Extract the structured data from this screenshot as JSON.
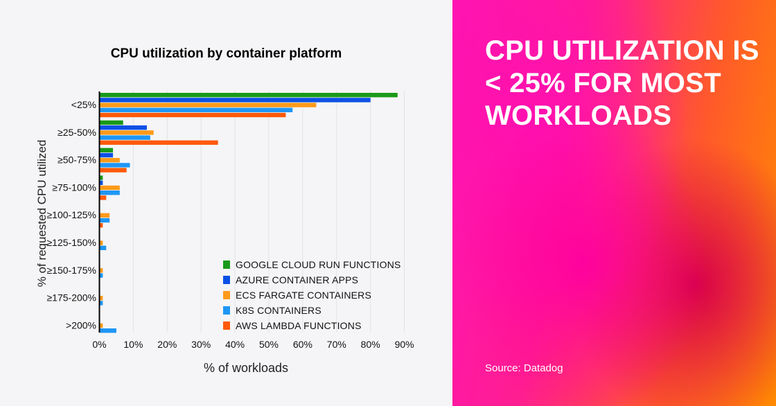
{
  "headline": "CPU UTILIZATION IS < 25% FOR MOST WORKLOADS",
  "source": "Source: Datadog",
  "chart_data": {
    "type": "bar",
    "orientation": "horizontal",
    "title": "CPU utilization by container platform",
    "xlabel": "% of workloads",
    "ylabel": "% of requested CPU utilized",
    "xlim": [
      0,
      90
    ],
    "xticks": [
      "0%",
      "10%",
      "20%",
      "30%",
      "40%",
      "50%",
      "60%",
      "70%",
      "80%",
      "90%"
    ],
    "grid": true,
    "legend_position": "bottom-right",
    "categories": [
      "<25%",
      "≥25-50%",
      "≥50-75%",
      "≥75-100%",
      "≥100-125%",
      "≥125-150%",
      "≥150-175%",
      "≥175-200%",
      ">200%"
    ],
    "series": [
      {
        "name": "GOOGLE CLOUD RUN FUNCTIONS",
        "color": "#1a9a1a",
        "values": [
          88,
          7,
          4,
          1,
          0,
          0,
          0,
          0,
          0
        ]
      },
      {
        "name": "AZURE CONTAINER APPS",
        "color": "#0b50e6",
        "values": [
          80,
          14,
          4,
          1,
          0,
          0,
          0,
          0,
          0
        ]
      },
      {
        "name": "ECS FARGATE CONTAINERS",
        "color": "#ff9a1a",
        "values": [
          64,
          16,
          6,
          6,
          3,
          1,
          1,
          1,
          1
        ]
      },
      {
        "name": "K8S CONTAINERS",
        "color": "#1e96f5",
        "values": [
          57,
          15,
          9,
          6,
          3,
          2,
          1,
          1,
          5
        ]
      },
      {
        "name": "AWS LAMBDA FUNCTIONS",
        "color": "#ff5a0a",
        "values": [
          55,
          35,
          8,
          2,
          1,
          0,
          0,
          0,
          0
        ]
      }
    ]
  }
}
